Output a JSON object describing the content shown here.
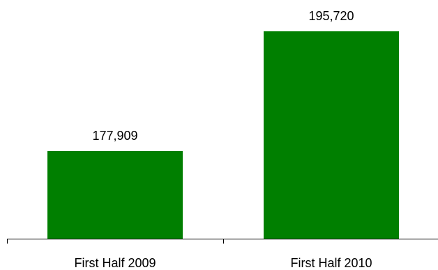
{
  "chart_data": {
    "type": "bar",
    "title": "",
    "xlabel": "",
    "ylabel": "",
    "categories": [
      "First Half 2009",
      "First Half 2010"
    ],
    "values": [
      177909,
      195720
    ],
    "value_labels": [
      "177,909",
      "195,720"
    ],
    "bar_color": "#007f00",
    "axis_color": "#000000",
    "grid": false,
    "legend": "none"
  }
}
